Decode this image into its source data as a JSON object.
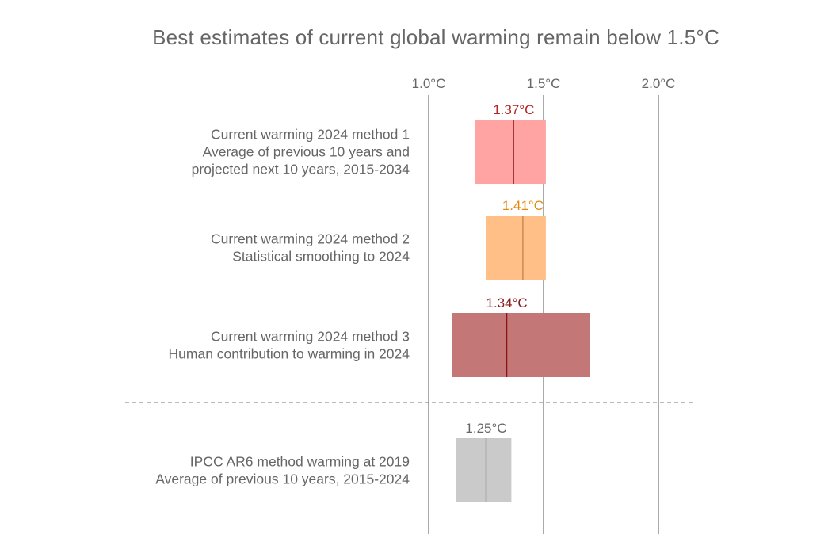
{
  "chart_data": {
    "type": "range_bar",
    "title": "Best estimates of current global warming remain below 1.5°C",
    "x_unit": "°C",
    "xlim": [
      1.0,
      2.0
    ],
    "x_ticks": [
      1.0,
      1.5,
      2.0
    ],
    "x_tick_labels": [
      "1.0°C",
      "1.5°C",
      "2.0°C"
    ],
    "grid": "vertical at ticks",
    "separator": "dashed line between method 3 and IPCC AR6",
    "rows": [
      {
        "label_lines": [
          "Current warming 2024 method 1",
          "Average of previous 10 years and",
          "projected next 10 years, 2015-2034"
        ],
        "low": 1.2,
        "high": 1.51,
        "best": 1.37,
        "best_label": "1.37°C",
        "fill_color": "#FFA3A3",
        "line_color": "#A53838",
        "label_color": "#B52323"
      },
      {
        "label_lines": [
          "Current warming 2024 method 2",
          "Statistical smoothing to 2024"
        ],
        "low": 1.25,
        "high": 1.51,
        "best": 1.41,
        "best_label": "1.41°C",
        "fill_color": "#FFBF86",
        "line_color": "#C8874B",
        "label_color": "#E38A12"
      },
      {
        "label_lines": [
          "Current warming 2024 method 3",
          "Human contribution to warming in 2024"
        ],
        "low": 1.1,
        "high": 1.7,
        "best": 1.34,
        "best_label": "1.34°C",
        "fill_color": "#C47777",
        "line_color": "#8C1515",
        "label_color": "#8C1A1A"
      },
      {
        "label_lines": [
          "IPCC AR6 method warming at 2019",
          "Average of previous 10 years, 2015-2024"
        ],
        "low": 1.12,
        "high": 1.36,
        "best": 1.25,
        "best_label": "1.25°C",
        "fill_color": "#CACACA",
        "line_color": "#7A7A7A",
        "label_color": "#666666"
      }
    ]
  }
}
